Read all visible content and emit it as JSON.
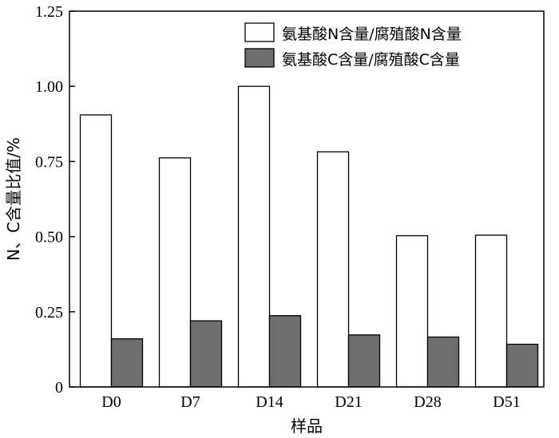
{
  "chart_data": {
    "type": "bar",
    "categories": [
      "D0",
      "D7",
      "D14",
      "D21",
      "D28",
      "D51"
    ],
    "series": [
      {
        "name": "氨基酸N含量/腐殖酸N含量",
        "values": [
          0.905,
          0.762,
          1.0,
          0.782,
          0.503,
          0.505
        ],
        "color": "#ffffff"
      },
      {
        "name": "氨基酸C含量/腐殖酸C含量",
        "values": [
          0.16,
          0.22,
          0.237,
          0.173,
          0.166,
          0.142
        ],
        "color": "#6e6e6e"
      }
    ],
    "xlabel": "样品",
    "ylabel": "N、C含量比值/%",
    "ylim": [
      0,
      1.25
    ],
    "yticks": [
      0,
      0.25,
      0.5,
      0.75,
      1.0,
      1.25
    ],
    "ytick_labels": [
      "0",
      "0.25",
      "0.50",
      "0.75",
      "1.00",
      "1.25"
    ],
    "legend_position": "top-right",
    "grid": false
  }
}
